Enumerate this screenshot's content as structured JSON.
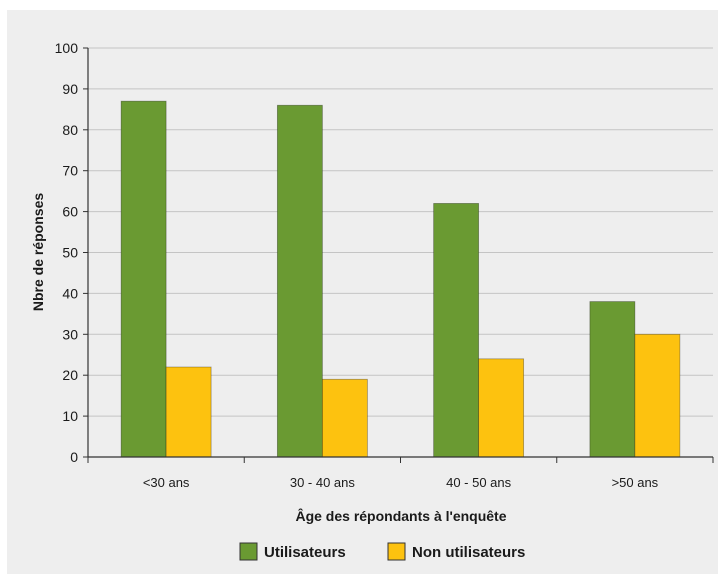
{
  "chart_data": {
    "type": "bar",
    "categories": [
      "<30 ans",
      "30 - 40 ans",
      "40 - 50 ans",
      ">50 ans"
    ],
    "series": [
      {
        "name": "Utilisateurs",
        "values": [
          87,
          86,
          62,
          38
        ],
        "color": "#6a9a32"
      },
      {
        "name": "Non utilisateurs",
        "values": [
          22,
          19,
          24,
          30
        ],
        "color": "#fdc20f"
      }
    ],
    "title": "",
    "xlabel": "Âge des répondants à l'enquête",
    "ylabel": "Nbre de réponses",
    "ylim": [
      0,
      100
    ],
    "yticks": [
      0,
      10,
      20,
      30,
      40,
      50,
      60,
      70,
      80,
      90,
      100
    ],
    "grid": true,
    "legend": "bottom"
  }
}
